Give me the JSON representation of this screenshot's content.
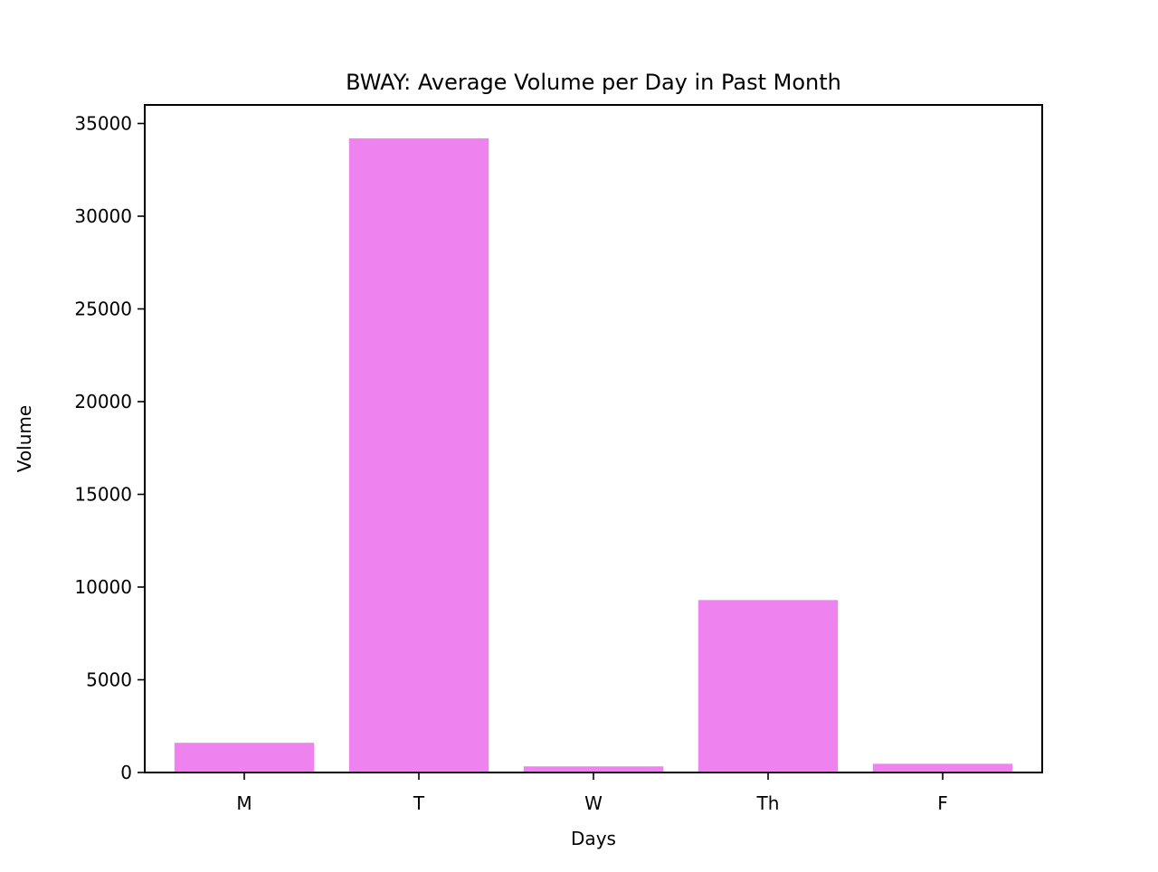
{
  "chart_data": {
    "type": "bar",
    "title": "BWAY: Average Volume per Day in Past Month",
    "xlabel": "Days",
    "ylabel": "Volume",
    "categories": [
      "M",
      "T",
      "W",
      "Th",
      "F"
    ],
    "values": [
      1600,
      34200,
      330,
      9300,
      470
    ],
    "ylim": [
      0,
      36000
    ],
    "yticks": [
      0,
      5000,
      10000,
      15000,
      20000,
      25000,
      30000,
      35000
    ],
    "ytick_labels": [
      "0",
      "5000",
      "10000",
      "15000",
      "20000",
      "25000",
      "30000",
      "35000"
    ],
    "bar_color": "#ee82ee",
    "grid": false,
    "legend": "none"
  }
}
